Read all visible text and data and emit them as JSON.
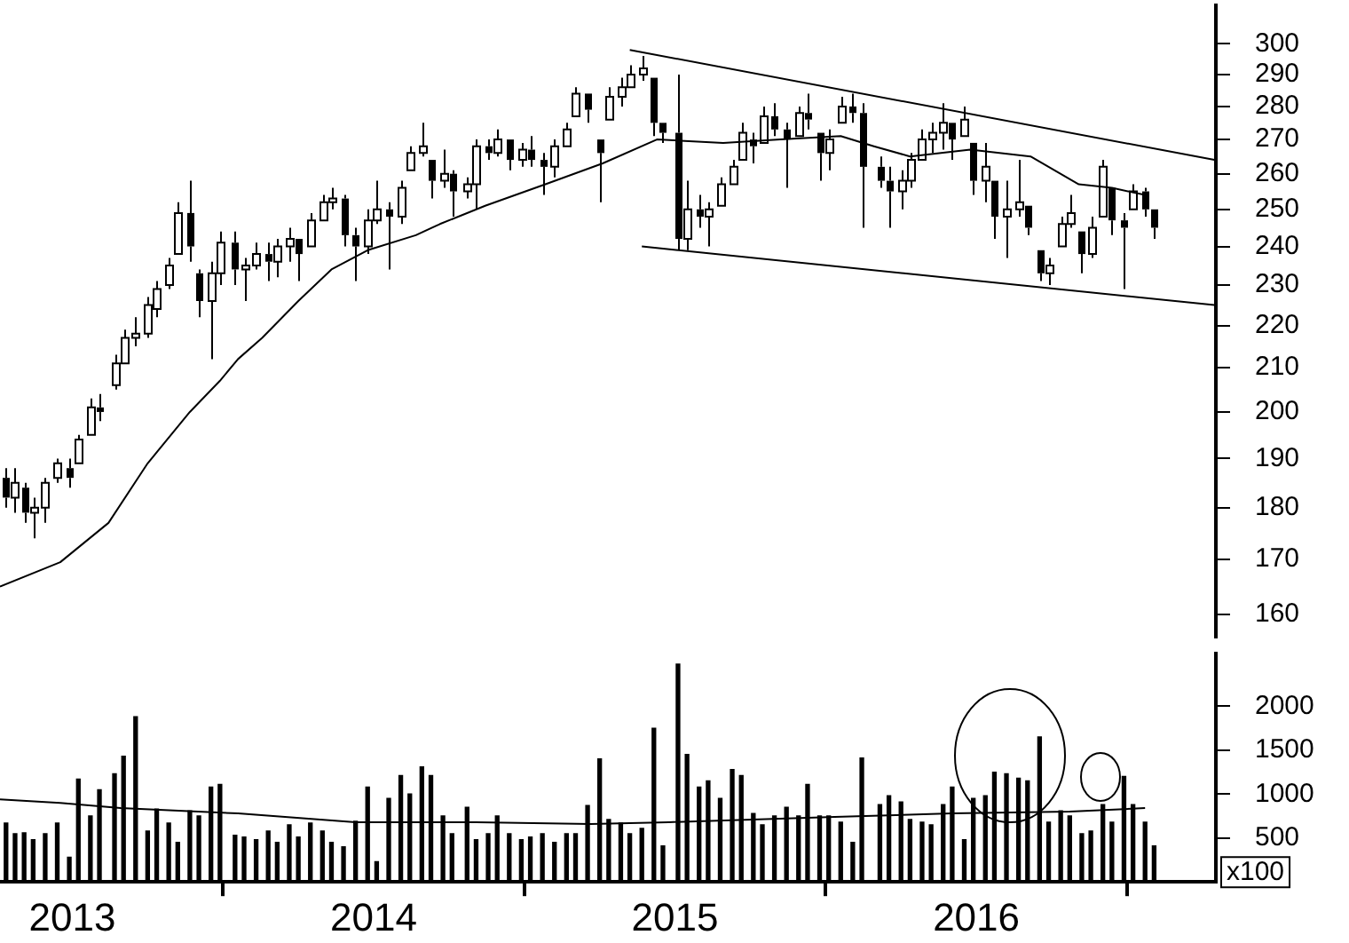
{
  "chart_data": [
    {
      "type": "candlestick",
      "log": "y",
      "tick_labels": "y",
      "color": "#000000",
      "xlim": [
        2012.76,
        2016.795
      ],
      "ylim": [
        156,
        313
      ],
      "yticks": [
        160,
        170,
        180,
        190,
        200,
        210,
        220,
        230,
        240,
        250,
        260,
        270,
        280,
        290,
        300
      ],
      "x": [
        2012.78,
        2012.81,
        2012.84,
        2012.87,
        2012.91,
        2012.95,
        2012.99,
        2013.02,
        2013.06,
        2013.09,
        2013.14,
        2013.17,
        2013.21,
        2013.25,
        2013.28,
        2013.32,
        2013.35,
        2013.39,
        2013.42,
        2013.46,
        2013.49,
        2013.54,
        2013.57,
        2013.61,
        2013.65,
        2013.68,
        2013.72,
        2013.75,
        2013.79,
        2013.83,
        2013.86,
        2013.9,
        2013.94,
        2013.98,
        2014.01,
        2014.05,
        2014.09,
        2014.12,
        2014.16,
        2014.19,
        2014.23,
        2014.26,
        2014.31,
        2014.34,
        2014.38,
        2014.41,
        2014.45,
        2014.49,
        2014.52,
        2014.56,
        2014.6,
        2014.64,
        2014.67,
        2014.71,
        2014.75,
        2014.78,
        2014.82,
        2014.85,
        2014.89,
        2014.93,
        2014.96,
        2015.01,
        2015.04,
        2015.08,
        2015.11,
        2015.15,
        2015.19,
        2015.22,
        2015.26,
        2015.29,
        2015.33,
        2015.37,
        2015.41,
        2015.44,
        2015.48,
        2015.51,
        2015.55,
        2015.59,
        2015.62,
        2015.68,
        2015.71,
        2015.75,
        2015.78,
        2015.82,
        2015.85,
        2015.89,
        2015.92,
        2015.96,
        2015.99,
        2016.03,
        2016.06,
        2016.1,
        2016.14,
        2016.17,
        2016.21,
        2016.24,
        2016.28,
        2016.31,
        2016.35,
        2016.38,
        2016.42,
        2016.45,
        2016.49,
        2016.52,
        2016.56,
        2016.59
      ],
      "ohlc": [
        [
          186,
          188,
          180,
          182
        ],
        [
          182,
          188,
          179,
          185
        ],
        [
          184,
          185,
          177,
          179
        ],
        [
          179,
          182,
          174,
          180
        ],
        [
          180,
          186,
          177,
          185
        ],
        [
          186,
          190,
          185,
          189
        ],
        [
          188,
          190,
          184,
          186
        ],
        [
          189,
          195,
          189,
          194
        ],
        [
          195,
          203,
          195,
          201
        ],
        [
          201,
          204,
          198,
          200
        ],
        [
          206,
          213,
          205,
          211
        ],
        [
          211,
          219,
          211,
          217
        ],
        [
          217,
          222,
          215,
          218
        ],
        [
          218,
          227,
          217,
          225
        ],
        [
          224,
          231,
          222,
          229
        ],
        [
          230,
          237,
          229,
          235
        ],
        [
          238,
          252,
          238,
          249
        ],
        [
          249,
          258,
          236,
          240
        ],
        [
          233,
          234,
          222,
          226
        ],
        [
          226,
          236,
          212,
          233
        ],
        [
          233,
          244,
          230,
          241
        ],
        [
          241,
          244,
          230,
          234
        ],
        [
          234,
          237,
          226,
          235
        ],
        [
          235,
          241,
          234,
          238
        ],
        [
          238,
          241,
          231,
          236
        ],
        [
          236,
          242,
          232,
          240
        ],
        [
          240,
          245,
          236,
          242
        ],
        [
          242,
          242,
          231,
          238
        ],
        [
          240,
          249,
          240,
          247
        ],
        [
          247,
          254,
          247,
          252
        ],
        [
          252,
          256,
          250,
          253
        ],
        [
          253,
          254,
          240,
          243
        ],
        [
          243,
          245,
          231,
          240
        ],
        [
          240,
          250,
          238,
          247
        ],
        [
          247,
          258,
          246,
          250
        ],
        [
          250,
          252,
          234,
          248
        ],
        [
          248,
          258,
          246,
          256
        ],
        [
          261,
          268,
          261,
          266
        ],
        [
          266,
          275,
          265,
          268
        ],
        [
          264,
          264,
          253,
          258
        ],
        [
          258,
          267,
          256,
          260
        ],
        [
          260,
          261,
          248,
          255
        ],
        [
          255,
          259,
          253,
          257
        ],
        [
          257,
          270,
          250,
          268
        ],
        [
          268,
          270,
          264,
          266
        ],
        [
          266,
          273,
          265,
          270
        ],
        [
          270,
          270,
          261,
          264
        ],
        [
          264,
          269,
          262,
          267
        ],
        [
          267,
          271,
          262,
          264
        ],
        [
          264,
          266,
          254,
          262
        ],
        [
          262,
          270,
          259,
          268
        ],
        [
          268,
          275,
          268,
          273
        ],
        [
          277,
          286,
          277,
          284
        ],
        [
          284,
          284,
          275,
          279
        ],
        [
          270,
          270,
          252,
          266
        ],
        [
          276,
          286,
          276,
          283
        ],
        [
          283,
          289,
          280,
          286
        ],
        [
          286,
          293,
          286,
          290
        ],
        [
          290,
          296,
          288,
          292
        ],
        [
          289,
          289,
          271,
          275
        ],
        [
          275,
          275,
          269,
          272
        ],
        [
          272,
          290,
          239,
          242
        ],
        [
          242,
          258,
          239,
          250
        ],
        [
          250,
          254,
          245,
          248
        ],
        [
          248,
          252,
          240,
          250
        ],
        [
          251,
          259,
          251,
          257
        ],
        [
          257,
          264,
          257,
          262
        ],
        [
          264,
          275,
          264,
          272
        ],
        [
          270,
          272,
          263,
          268
        ],
        [
          269,
          280,
          269,
          277
        ],
        [
          277,
          281,
          271,
          273
        ],
        [
          273,
          275,
          256,
          270
        ],
        [
          271,
          280,
          271,
          278
        ],
        [
          278,
          284,
          273,
          276
        ],
        [
          272,
          272,
          258,
          266
        ],
        [
          266,
          273,
          261,
          270
        ],
        [
          275,
          283,
          275,
          280
        ],
        [
          280,
          284,
          275,
          278
        ],
        [
          278,
          281,
          245,
          262
        ],
        [
          262,
          265,
          256,
          258
        ],
        [
          258,
          262,
          245,
          255
        ],
        [
          255,
          261,
          250,
          258
        ],
        [
          258,
          266,
          256,
          264
        ],
        [
          264,
          273,
          264,
          270
        ],
        [
          270,
          275,
          266,
          272
        ],
        [
          272,
          281,
          267,
          275
        ],
        [
          275,
          275,
          264,
          270
        ],
        [
          271,
          280,
          271,
          276
        ],
        [
          269,
          269,
          254,
          258
        ],
        [
          258,
          269,
          252,
          262
        ],
        [
          258,
          258,
          242,
          248
        ],
        [
          248,
          258,
          237,
          250
        ],
        [
          250,
          264,
          248,
          252
        ],
        [
          251,
          251,
          243,
          245
        ],
        [
          239,
          239,
          231,
          233
        ],
        [
          233,
          237,
          230,
          235
        ],
        [
          240,
          248,
          240,
          246
        ],
        [
          246,
          254,
          245,
          249
        ],
        [
          244,
          244,
          233,
          238
        ],
        [
          238,
          248,
          237,
          245
        ],
        [
          248,
          264,
          248,
          262
        ],
        [
          256,
          256,
          243,
          247
        ],
        [
          247,
          249,
          229,
          245
        ],
        [
          250,
          257,
          250,
          255
        ],
        [
          255,
          256,
          248,
          250
        ],
        [
          250,
          250,
          242,
          245
        ]
      ],
      "series": [
        {
          "type": "line",
          "color": "#000000",
          "x": [
            2012.76,
            2012.96,
            2013.12,
            2013.25,
            2013.39,
            2013.49,
            2013.55,
            2013.63,
            2013.75,
            2013.86,
            2013.98,
            2014.14,
            2014.22,
            2014.37,
            2014.57,
            2014.76,
            2014.94,
            2015.16,
            2015.35,
            2015.55,
            2015.66,
            2015.78,
            2015.98,
            2016.18,
            2016.34,
            2016.45,
            2016.56
          ],
          "values": [
            165,
            169.5,
            177,
            189,
            200,
            207,
            212,
            217,
            226,
            234,
            239,
            243,
            246,
            251,
            257,
            263,
            270,
            269,
            270,
            271,
            268,
            265,
            267,
            265,
            257,
            256,
            254
          ]
        },
        {
          "type": "line",
          "color": "#000000",
          "x": [
            2014.85,
            2016.79
          ],
          "values": [
            298,
            264
          ]
        },
        {
          "type": "line",
          "color": "#000000",
          "x": [
            2014.89,
            2016.79
          ],
          "values": [
            240,
            225
          ]
        }
      ]
    },
    {
      "type": "bar",
      "ylabel": "x100",
      "xlim": [
        2012.76,
        2016.795
      ],
      "ylim": [
        0,
        2600
      ],
      "yticks": [
        500,
        1000,
        1500,
        2000
      ],
      "xticks": [
        2013,
        2014,
        2015,
        2016
      ],
      "x": [
        2012.78,
        2012.81,
        2012.84,
        2012.87,
        2012.91,
        2012.95,
        2012.99,
        2013.02,
        2013.06,
        2013.09,
        2013.14,
        2013.17,
        2013.21,
        2013.25,
        2013.28,
        2013.32,
        2013.35,
        2013.39,
        2013.42,
        2013.46,
        2013.49,
        2013.54,
        2013.57,
        2013.61,
        2013.65,
        2013.68,
        2013.72,
        2013.75,
        2013.79,
        2013.83,
        2013.86,
        2013.9,
        2013.94,
        2013.98,
        2014.01,
        2014.05,
        2014.09,
        2014.12,
        2014.16,
        2014.19,
        2014.23,
        2014.26,
        2014.31,
        2014.34,
        2014.38,
        2014.41,
        2014.45,
        2014.49,
        2014.52,
        2014.56,
        2014.6,
        2014.64,
        2014.67,
        2014.71,
        2014.75,
        2014.78,
        2014.82,
        2014.85,
        2014.89,
        2014.93,
        2014.96,
        2015.01,
        2015.04,
        2015.08,
        2015.11,
        2015.15,
        2015.19,
        2015.22,
        2015.26,
        2015.29,
        2015.33,
        2015.37,
        2015.41,
        2015.44,
        2015.48,
        2015.51,
        2015.55,
        2015.59,
        2015.62,
        2015.68,
        2015.71,
        2015.75,
        2015.78,
        2015.82,
        2015.85,
        2015.89,
        2015.92,
        2015.96,
        2015.99,
        2016.03,
        2016.06,
        2016.1,
        2016.14,
        2016.17,
        2016.21,
        2016.24,
        2016.28,
        2016.31,
        2016.35,
        2016.38,
        2016.42,
        2016.45,
        2016.49,
        2016.52,
        2016.56,
        2016.59
      ],
      "series": [
        {
          "type": "bar",
          "color": "#000000",
          "values": [
            670,
            550,
            560,
            480,
            550,
            670,
            280,
            1170,
            750,
            1050,
            1230,
            1430,
            1880,
            580,
            830,
            670,
            450,
            810,
            750,
            1080,
            1110,
            530,
            510,
            480,
            580,
            450,
            650,
            510,
            670,
            580,
            450,
            400,
            690,
            1080,
            230,
            950,
            1210,
            1000,
            1310,
            1210,
            750,
            550,
            850,
            480,
            550,
            750,
            550,
            480,
            510,
            550,
            450,
            550,
            550,
            870,
            1400,
            710,
            670,
            550,
            610,
            1750,
            410,
            2480,
            1450,
            1080,
            1150,
            950,
            1280,
            1210,
            780,
            650,
            750,
            850,
            750,
            1110,
            750,
            750,
            680,
            450,
            1410,
            880,
            980,
            910,
            710,
            680,
            650,
            880,
            1080,
            480,
            950,
            980,
            1250,
            1230,
            1180,
            1150,
            1650,
            680,
            810,
            750,
            550,
            580,
            880,
            680,
            1200,
            880,
            680,
            410
          ]
        },
        {
          "type": "line",
          "color": "#000000",
          "x": [
            2012.76,
            2012.96,
            2013.16,
            2013.55,
            2013.94,
            2014.34,
            2014.72,
            2014.98,
            2015.53,
            2015.92,
            2016.31,
            2016.56
          ],
          "values": [
            940,
            900,
            840,
            780,
            680,
            680,
            660,
            680,
            740,
            780,
            800,
            840
          ]
        }
      ]
    }
  ]
}
